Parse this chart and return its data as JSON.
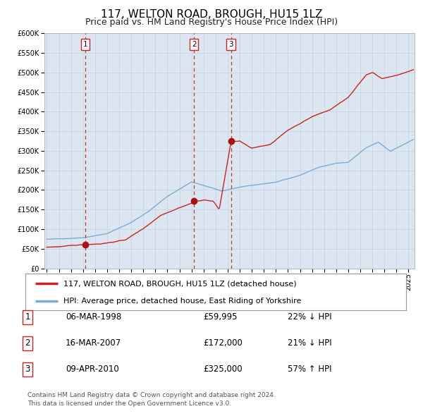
{
  "title": "117, WELTON ROAD, BROUGH, HU15 1LZ",
  "subtitle": "Price paid vs. HM Land Registry's House Price Index (HPI)",
  "background_color": "#dce6f0",
  "plot_bg_color": "#dce6f0",
  "ylim": [
    0,
    600000
  ],
  "yticks": [
    0,
    50000,
    100000,
    150000,
    200000,
    250000,
    300000,
    350000,
    400000,
    450000,
    500000,
    550000,
    600000
  ],
  "xlim_start": 1994.8,
  "xlim_end": 2025.5,
  "sale_dates_year": [
    1998.19,
    2007.21,
    2010.27
  ],
  "sale_prices": [
    59995,
    172000,
    325000
  ],
  "sale_labels": [
    "1",
    "2",
    "3"
  ],
  "hpi_line_color": "#7aadd4",
  "price_line_color": "#cc2222",
  "marker_color": "#aa1111",
  "dashed_line_color": "#cc3333",
  "legend_label_price": "117, WELTON ROAD, BROUGH, HU15 1LZ (detached house)",
  "legend_label_hpi": "HPI: Average price, detached house, East Riding of Yorkshire",
  "table_rows": [
    [
      "1",
      "06-MAR-1998",
      "£59,995",
      "22% ↓ HPI"
    ],
    [
      "2",
      "16-MAR-2007",
      "£172,000",
      "21% ↓ HPI"
    ],
    [
      "3",
      "09-APR-2010",
      "£325,000",
      "57% ↑ HPI"
    ]
  ],
  "footnote": "Contains HM Land Registry data © Crown copyright and database right 2024.\nThis data is licensed under the Open Government Licence v3.0.",
  "title_fontsize": 11,
  "subtitle_fontsize": 9,
  "tick_fontsize": 7,
  "legend_fontsize": 8,
  "table_fontsize": 8.5
}
